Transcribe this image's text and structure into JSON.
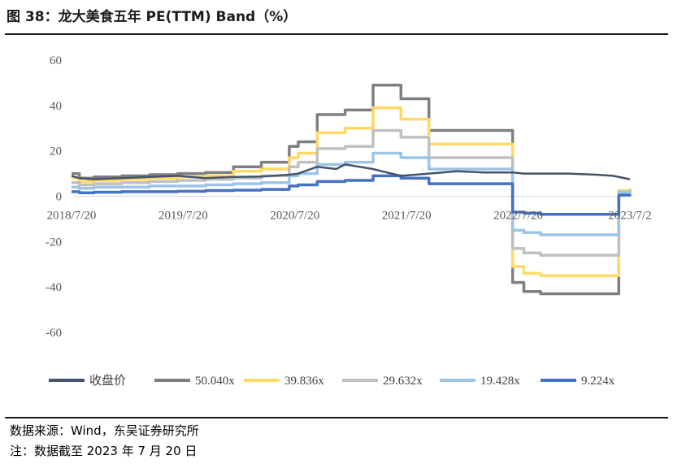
{
  "page": {
    "title": "图 38：龙大美食五年 PE(TTM) Band（%）",
    "source": "数据来源：Wind，东吴证券研究所",
    "note": "注：数据截至 2023 年 7 月 20 日"
  },
  "colors": {
    "close": "#44546A",
    "s50": "#7F7F7F",
    "s39": "#FFD966",
    "s29": "#C0C0C0",
    "s19": "#9DC3E6",
    "s9": "#4472C4",
    "axis": "#D9D9D9"
  },
  "chart_data": {
    "type": "line",
    "title": "龙大美食五年 PE(TTM) Band（%）",
    "xlabel": "",
    "ylabel": "",
    "ylim": [
      -60,
      60
    ],
    "y_ticks": [
      "60",
      "40",
      "20",
      "0",
      "-20",
      "-40",
      "-60"
    ],
    "x_ticks": [
      "2018/7/20",
      "2019/7/20",
      "2020/7/20",
      "2021/7/20",
      "2022/7/20",
      "2023/7/2"
    ],
    "x": [
      2018.55,
      2018.62,
      2018.75,
      2019.0,
      2019.25,
      2019.5,
      2019.75,
      2020.0,
      2020.25,
      2020.5,
      2020.58,
      2020.75,
      2020.92,
      2021.0,
      2021.25,
      2021.33,
      2021.5,
      2021.75,
      2022.0,
      2022.25,
      2022.5,
      2022.6,
      2022.75,
      2023.0,
      2023.25,
      2023.4,
      2023.45,
      2023.55
    ],
    "series": [
      {
        "name": "收盘价",
        "color_key": "close",
        "values": [
          9,
          8,
          7.5,
          8,
          8.5,
          9,
          8,
          8.5,
          8.7,
          9.5,
          10,
          13,
          12,
          14,
          12,
          11,
          9,
          10,
          11,
          10.5,
          10.5,
          10,
          10,
          10,
          9.5,
          9,
          8.5,
          7.5
        ]
      },
      {
        "name": "50.040x",
        "color_key": "s50",
        "values": [
          10,
          8,
          8.5,
          9,
          9.5,
          10,
          10.5,
          13,
          15,
          22,
          24,
          36,
          36,
          38,
          49,
          49,
          43,
          29,
          29,
          29,
          -38,
          -42,
          -43,
          -43,
          -43,
          -43,
          2,
          3
        ]
      },
      {
        "name": "39.836x",
        "color_key": "s39",
        "values": [
          8,
          6.5,
          7,
          7.5,
          8,
          8.5,
          9,
          11,
          12,
          17,
          19,
          28,
          28,
          30,
          39,
          39,
          34,
          23,
          23,
          23,
          -31,
          -34,
          -35,
          -35,
          -35,
          -35,
          2.5,
          3.5
        ]
      },
      {
        "name": "29.632x",
        "color_key": "s29",
        "values": [
          6,
          5,
          5.5,
          6,
          6.5,
          7,
          7.5,
          8,
          9,
          13,
          15,
          21,
          21,
          22,
          29,
          29,
          26,
          17,
          17,
          17,
          -23,
          -25,
          -26,
          -26,
          -26,
          -26,
          2,
          3
        ]
      },
      {
        "name": "19.428x",
        "color_key": "s19",
        "values": [
          4,
          3.5,
          4,
          4,
          4.5,
          4.5,
          5,
          5.5,
          6,
          9,
          10,
          14,
          14,
          15,
          19,
          19,
          17,
          12,
          12,
          12,
          -15,
          -16,
          -17,
          -17,
          -17,
          -17,
          1.5,
          2
        ]
      },
      {
        "name": "9.224x",
        "color_key": "s9",
        "values": [
          2,
          1.5,
          1.8,
          2,
          2,
          2.2,
          2.5,
          2.7,
          3,
          4.5,
          5,
          6.5,
          6.5,
          7,
          9,
          9,
          8,
          5.5,
          5.5,
          5.5,
          -7,
          -7.5,
          -8,
          -8,
          -8,
          -8,
          0.5,
          1
        ]
      }
    ],
    "legend": {
      "position": "bottom",
      "entries": [
        "收盘价",
        "50.040x",
        "39.836x",
        "29.632x",
        "19.428x",
        "9.224x"
      ]
    }
  }
}
